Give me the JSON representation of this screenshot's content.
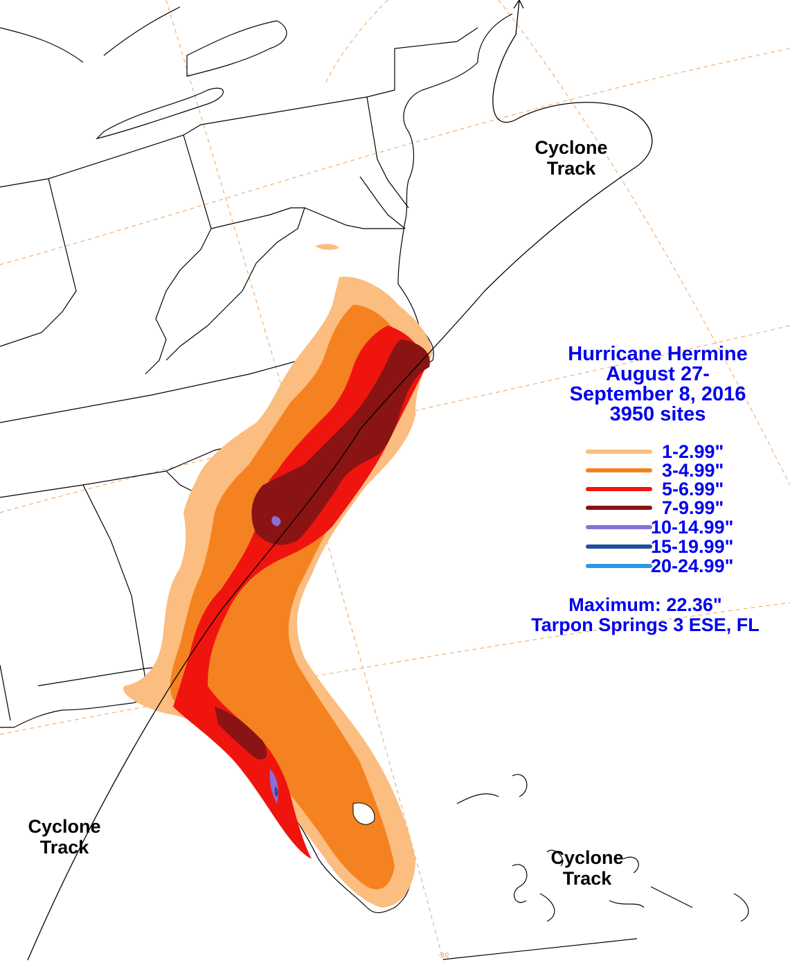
{
  "title": {
    "line1": "Hurricane Hermine",
    "line2": "August 27-",
    "line3": "September 8, 2016",
    "line4": "3950 sites"
  },
  "legend": [
    {
      "label": "1-2.99\"",
      "color": "#fbbd80"
    },
    {
      "label": "3-4.99\"",
      "color": "#f58220"
    },
    {
      "label": "5-6.99\"",
      "color": "#f0140e"
    },
    {
      "label": "7-9.99\"",
      "color": "#8a1414"
    },
    {
      "label": "10-14.99\"",
      "color": "#8a6fd8"
    },
    {
      "label": "15-19.99\"",
      "color": "#1f4f9a"
    },
    {
      "label": "20-24.99\"",
      "color": "#2f95ea"
    }
  ],
  "maximum": {
    "label": "Maximum:  22.36\"",
    "location": "Tarpon Springs 3 ESE, FL"
  },
  "track_labels": {
    "line1": "Cyclone",
    "line2": "Track"
  },
  "longitude_tick": "-80",
  "colors": {
    "text_accent": "#0000ee",
    "graticule": "#f2a05a",
    "boundaries": "#000000"
  }
}
